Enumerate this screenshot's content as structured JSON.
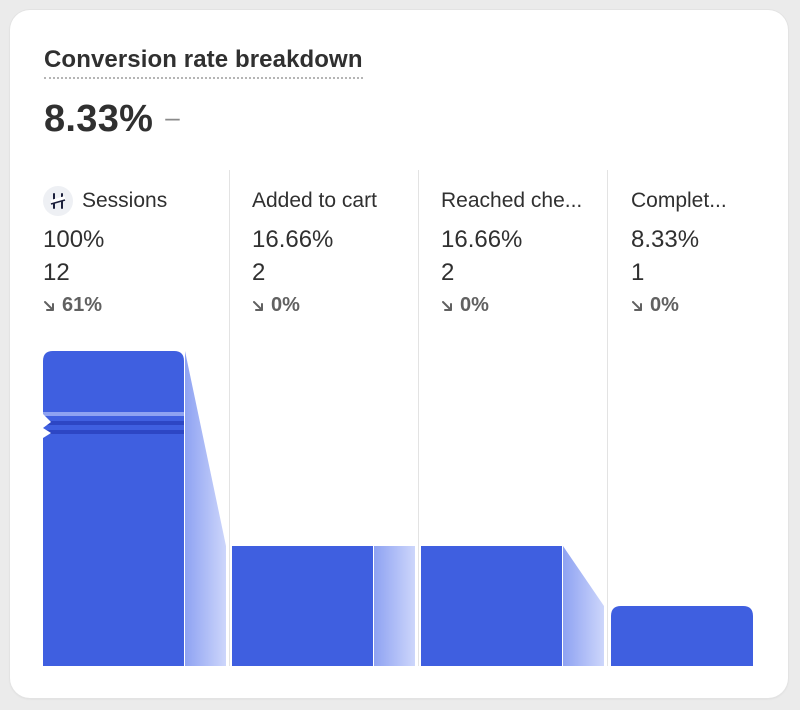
{
  "card": {
    "title": "Conversion rate breakdown",
    "metric_value": "8.33%",
    "metric_change": "–"
  },
  "stages": [
    {
      "label": "Sessions",
      "percent": "100%",
      "count": "12",
      "change": "61%"
    },
    {
      "label": "Added to cart",
      "percent": "16.66%",
      "count": "2",
      "change": "0%"
    },
    {
      "label": "Reached che...",
      "percent": "16.66%",
      "count": "2",
      "change": "0%"
    },
    {
      "label": "Complet...",
      "percent": "8.33%",
      "count": "1",
      "change": "0%"
    }
  ],
  "chart_data": {
    "type": "bar",
    "title": "Conversion rate breakdown",
    "categories": [
      "Sessions",
      "Added to cart",
      "Reached checkout",
      "Completed checkout"
    ],
    "values": [
      12,
      2,
      2,
      1
    ],
    "percentages": [
      100,
      16.66,
      16.66,
      8.33
    ],
    "changes": [
      "61%",
      "0%",
      "0%",
      "0%"
    ],
    "axis_break": true,
    "colors": {
      "bar": "#3f5fe0",
      "connector_from": "#8ea2f2",
      "connector_to": "#cdd6fb",
      "break_band": "#2d46c4"
    }
  }
}
